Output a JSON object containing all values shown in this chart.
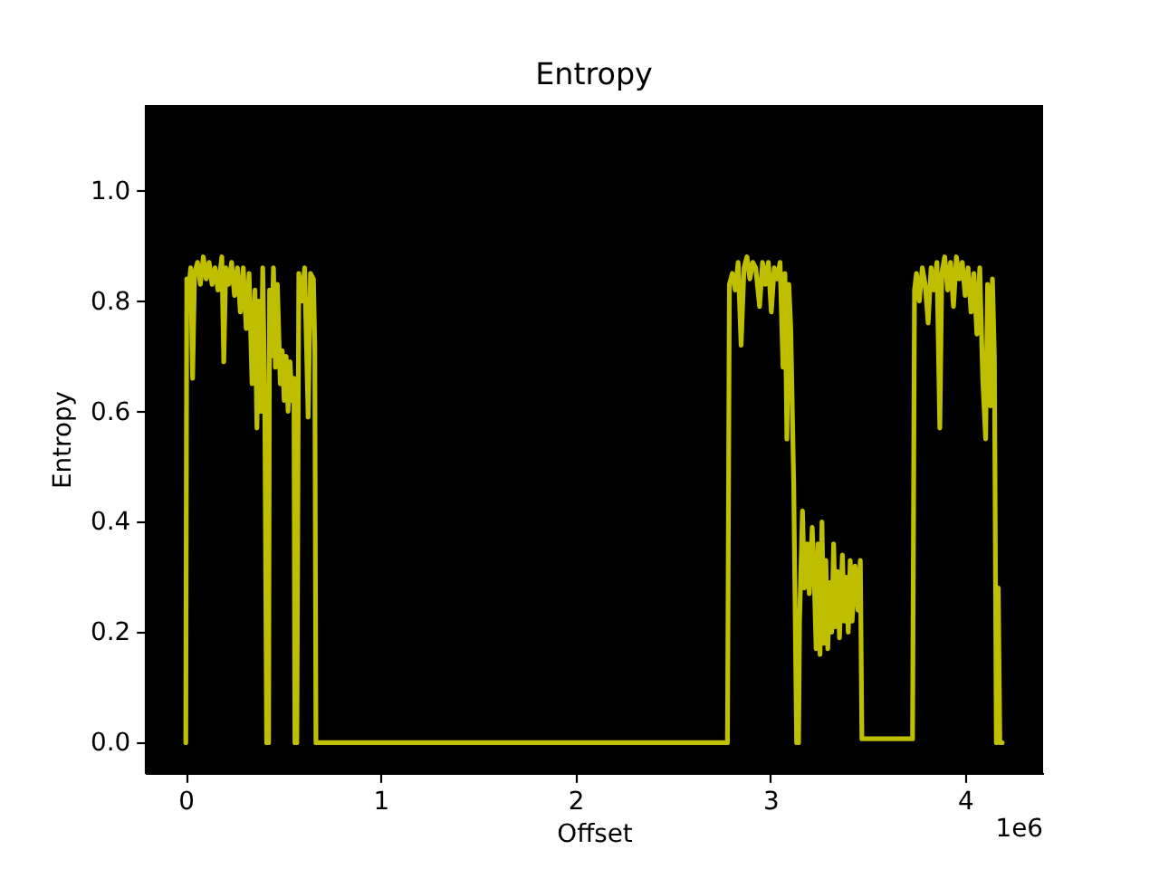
{
  "chart_data": {
    "type": "line",
    "title": "Entropy",
    "xlabel": "Offset",
    "ylabel": "Entropy",
    "annotations": [
      "1e6"
    ],
    "color": "#bfbf00",
    "line_style": "solid",
    "x": [
      0,
      0.005,
      0.015,
      0.025,
      0.035,
      0.045,
      0.06,
      0.075,
      0.09,
      0.105,
      0.12,
      0.135,
      0.15,
      0.165,
      0.185,
      0.195,
      0.205,
      0.22,
      0.235,
      0.25,
      0.265,
      0.28,
      0.295,
      0.31,
      0.325,
      0.34,
      0.355,
      0.365,
      0.375,
      0.385,
      0.395,
      0.405,
      0.415,
      0.425,
      0.43,
      0.44,
      0.45,
      0.46,
      0.47,
      0.485,
      0.495,
      0.505,
      0.515,
      0.525,
      0.535,
      0.545,
      0.555,
      0.56,
      0.57,
      0.58,
      0.595,
      0.61,
      0.628,
      0.64,
      0.655,
      0.662,
      0.668,
      2.78,
      2.79,
      2.805,
      2.82,
      2.835,
      2.85,
      2.865,
      2.88,
      2.895,
      2.91,
      2.925,
      2.945,
      2.96,
      2.975,
      2.99,
      3.005,
      3.02,
      3.035,
      3.05,
      3.065,
      3.075,
      3.085,
      3.095,
      3.105,
      3.12,
      3.135,
      3.145,
      3.15,
      3.165,
      3.175,
      3.19,
      3.2,
      3.215,
      3.225,
      3.235,
      3.245,
      3.255,
      3.265,
      3.275,
      3.285,
      3.295,
      3.305,
      3.315,
      3.325,
      3.335,
      3.345,
      3.355,
      3.37,
      3.38,
      3.39,
      3.4,
      3.41,
      3.42,
      3.435,
      3.45,
      3.462,
      3.47,
      3.73,
      3.74,
      3.75,
      3.765,
      3.78,
      3.795,
      3.81,
      3.825,
      3.84,
      3.855,
      3.87,
      3.88,
      3.895,
      3.91,
      3.925,
      3.94,
      3.955,
      3.97,
      3.985,
      4,
      4.015,
      4.03,
      4.045,
      4.06,
      4.075,
      4.09,
      4.105,
      4.115,
      4.13,
      4.14,
      4.15,
      4.16,
      4.17,
      4.178,
      4.19
    ],
    "values": [
      0,
      0.84,
      0.82,
      0.86,
      0.66,
      0.85,
      0.87,
      0.83,
      0.88,
      0.84,
      0.87,
      0.83,
      0.86,
      0.82,
      0.88,
      0.69,
      0.86,
      0.83,
      0.87,
      0.81,
      0.86,
      0.78,
      0.86,
      0.75,
      0.85,
      0.65,
      0.82,
      0.57,
      0.8,
      0.6,
      0.86,
      0.64,
      0,
      0,
      0.82,
      0.7,
      0.86,
      0.68,
      0.83,
      0.65,
      0.71,
      0.62,
      0.7,
      0.6,
      0.69,
      0.62,
      0.66,
      0,
      0,
      0.85,
      0.8,
      0.86,
      0.59,
      0.85,
      0.84,
      0.72,
      0,
      0,
      0.83,
      0.85,
      0.82,
      0.87,
      0.72,
      0.86,
      0.88,
      0.84,
      0.87,
      0.86,
      0.79,
      0.87,
      0.83,
      0.87,
      0.78,
      0.86,
      0.84,
      0.87,
      0.68,
      0.85,
      0.55,
      0.83,
      0.75,
      0.47,
      0,
      0,
      0.22,
      0.42,
      0.28,
      0.36,
      0.27,
      0.39,
      0.3,
      0.17,
      0.36,
      0.16,
      0.4,
      0.18,
      0.33,
      0.17,
      0.29,
      0.2,
      0.36,
      0.21,
      0.31,
      0.19,
      0.34,
      0.22,
      0.3,
      0.2,
      0.33,
      0.22,
      0.32,
      0.24,
      0.33,
      0.007,
      0.007,
      0.82,
      0.85,
      0.8,
      0.86,
      0.83,
      0.76,
      0.86,
      0.82,
      0.87,
      0.57,
      0.85,
      0.88,
      0.82,
      0.87,
      0.79,
      0.88,
      0.84,
      0.87,
      0.81,
      0.86,
      0.78,
      0.85,
      0.74,
      0.86,
      0.66,
      0.55,
      0.83,
      0.61,
      0.84,
      0.7,
      0,
      0.28,
      0,
      0
    ],
    "xlim": [
      -0.21,
      4.4
    ],
    "xticks": [
      0,
      1,
      2,
      3,
      4
    ],
    "ylim": [
      -0.055,
      1.155
    ],
    "yticks": [
      {
        "value": 0,
        "label": "0.0"
      },
      0.2,
      0.4,
      0.6,
      0.8,
      {
        "value": 1,
        "label": "1.0"
      }
    ]
  }
}
